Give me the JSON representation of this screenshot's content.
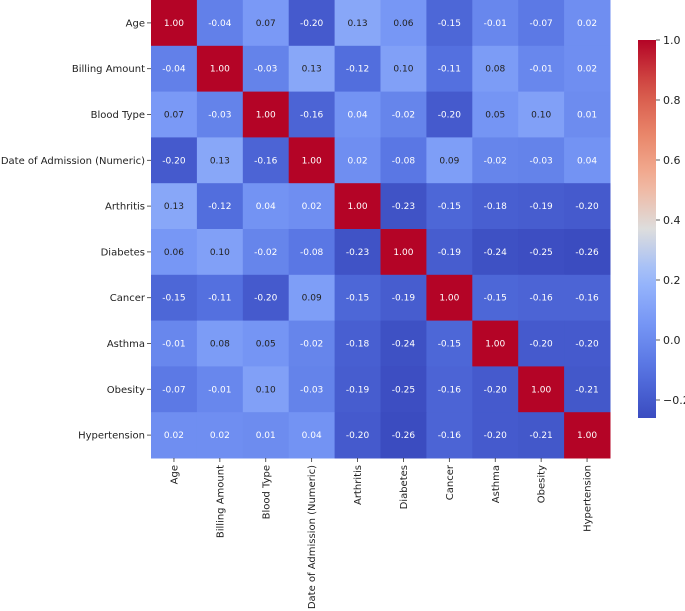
{
  "chart_data": {
    "type": "heatmap",
    "title": "",
    "xlabel": "",
    "ylabel": "",
    "colormap": "coolwarm",
    "labels": [
      "Age",
      "Billing Amount",
      "Blood Type",
      "Date of Admission (Numeric)",
      "Arthritis",
      "Diabetes",
      "Cancer",
      "Asthma",
      "Obesity",
      "Hypertension"
    ],
    "matrix": [
      [
        1.0,
        -0.04,
        0.07,
        -0.2,
        0.13,
        0.06,
        -0.15,
        -0.01,
        -0.07,
        0.02
      ],
      [
        -0.04,
        1.0,
        -0.03,
        0.13,
        -0.12,
        0.1,
        -0.11,
        0.08,
        -0.01,
        0.02
      ],
      [
        0.07,
        -0.03,
        1.0,
        -0.16,
        0.04,
        -0.02,
        -0.2,
        0.05,
        0.1,
        0.01
      ],
      [
        -0.2,
        0.13,
        -0.16,
        1.0,
        0.02,
        -0.08,
        0.09,
        -0.02,
        -0.03,
        0.04
      ],
      [
        0.13,
        -0.12,
        0.04,
        0.02,
        1.0,
        -0.23,
        -0.15,
        -0.18,
        -0.19,
        -0.2
      ],
      [
        0.06,
        0.1,
        -0.02,
        -0.08,
        -0.23,
        1.0,
        -0.19,
        -0.24,
        -0.25,
        -0.26
      ],
      [
        -0.15,
        -0.11,
        -0.2,
        0.09,
        -0.15,
        -0.19,
        1.0,
        -0.15,
        -0.16,
        -0.16
      ],
      [
        -0.01,
        0.08,
        0.05,
        -0.02,
        -0.18,
        -0.24,
        -0.15,
        1.0,
        -0.2,
        -0.2
      ],
      [
        -0.07,
        -0.01,
        0.1,
        -0.03,
        -0.19,
        -0.25,
        -0.16,
        -0.2,
        1.0,
        -0.21
      ],
      [
        0.02,
        0.02,
        0.01,
        0.04,
        -0.2,
        -0.26,
        -0.16,
        -0.2,
        -0.21,
        1.0
      ]
    ],
    "value_format": "0.00",
    "vmin": -0.26,
    "vmax": 1.0,
    "colorbar_ticks": [
      1.0,
      0.8,
      0.6,
      0.4,
      0.2,
      0.0,
      -0.2
    ],
    "colorbar_tick_labels": [
      "1.0",
      "0.8",
      "0.6",
      "0.4",
      "0.2",
      "0.0",
      "−0.2"
    ]
  }
}
